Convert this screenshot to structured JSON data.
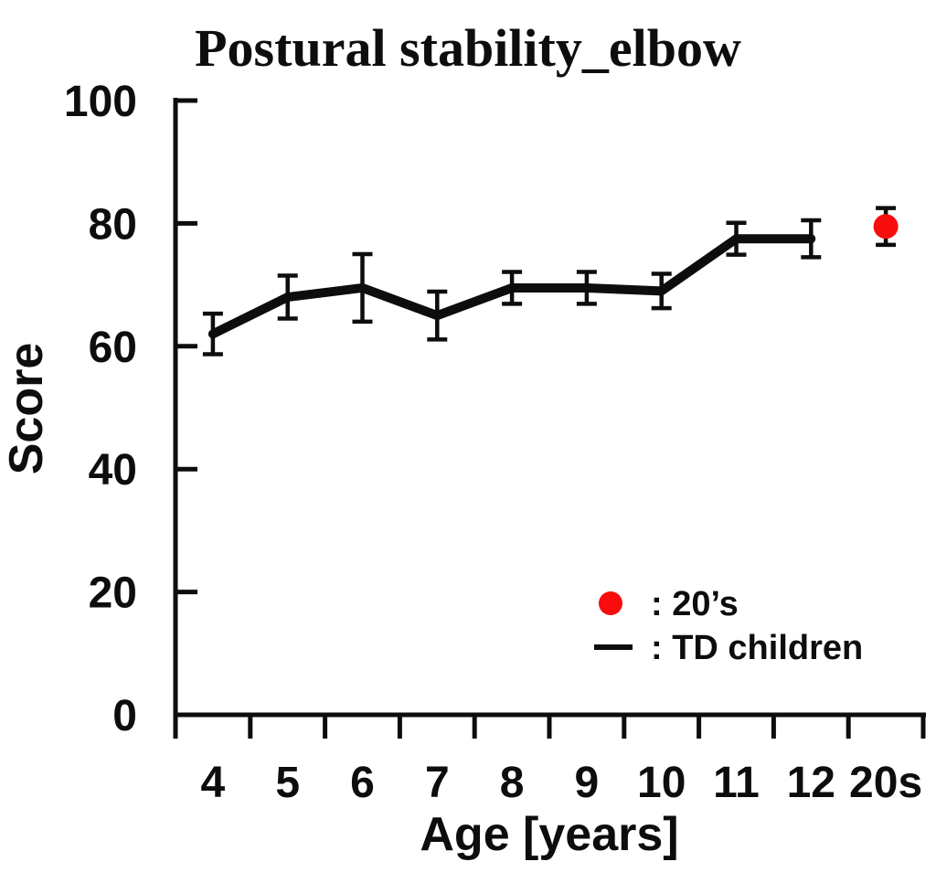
{
  "colors": {
    "axis": "#0d0d0d",
    "td_line": "#0d0d0d",
    "red_dot": "#f80c0c",
    "background": "#ffffff"
  },
  "chart_data": {
    "type": "line",
    "title": "Postural stability_elbow",
    "xlabel": "Age [years]",
    "ylabel": "Score",
    "ylim": [
      0,
      100
    ],
    "yticks": [
      0,
      20,
      40,
      60,
      80,
      100
    ],
    "grid": false,
    "legend_position": "inside lower right",
    "categories": [
      "4",
      "5",
      "6",
      "7",
      "8",
      "9",
      "10",
      "11",
      "12",
      "20s"
    ],
    "series": [
      {
        "name": "TD children",
        "type": "line",
        "color": "#0d0d0d",
        "values": [
          62,
          68,
          69.5,
          65,
          69.5,
          69.5,
          69,
          77.5,
          77.5,
          null
        ],
        "errors": [
          3.3,
          3.5,
          5.5,
          3.9,
          2.6,
          2.6,
          2.8,
          2.6,
          3.0,
          null
        ]
      },
      {
        "name": "20’s",
        "type": "scatter",
        "color": "#f80c0c",
        "values": [
          null,
          null,
          null,
          null,
          null,
          null,
          null,
          null,
          null,
          79.5
        ],
        "errors": [
          null,
          null,
          null,
          null,
          null,
          null,
          null,
          null,
          null,
          3.0
        ]
      }
    ],
    "legend": {
      "entries": [
        {
          "marker": "dot",
          "color": "#f80c0c",
          "label": ": 20’s"
        },
        {
          "marker": "dash",
          "color": "#0d0d0d",
          "label": ": TD children"
        }
      ]
    }
  }
}
